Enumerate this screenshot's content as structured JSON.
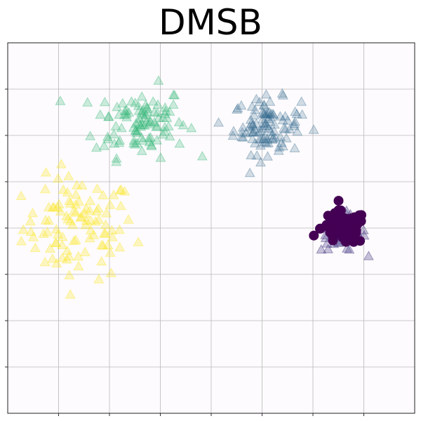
{
  "chart_data": {
    "type": "scatter",
    "title": "DMSB",
    "xlabel": "",
    "ylabel": "",
    "grid": true,
    "show_tick_labels": false,
    "xlim": [
      0,
      8
    ],
    "ylim": [
      0,
      8
    ],
    "background": "#fdfbfd",
    "series": [
      {
        "marker": "triangle",
        "color": "#fde725",
        "opacity": 0.28,
        "center": [
          1.4,
          4.0
        ],
        "spread": [
          0.55,
          0.55
        ],
        "count": 100
      },
      {
        "marker": "triangle",
        "color": "#35b779",
        "opacity": 0.25,
        "center": [
          2.6,
          6.3
        ],
        "spread": [
          0.45,
          0.38
        ],
        "count": 100
      },
      {
        "marker": "triangle",
        "color": "#31688e",
        "opacity": 0.22,
        "center": [
          5.1,
          6.2
        ],
        "spread": [
          0.33,
          0.3
        ],
        "count": 100
      },
      {
        "marker": "triangle",
        "color": "#443983",
        "opacity": 0.3,
        "center": [
          6.6,
          3.9
        ],
        "spread": [
          0.22,
          0.2
        ],
        "count": 50
      },
      {
        "marker": "circle",
        "color": "#440154",
        "opacity": 1.0,
        "center": [
          6.6,
          4.0
        ],
        "spread": [
          0.22,
          0.18
        ],
        "count": 80
      }
    ]
  }
}
